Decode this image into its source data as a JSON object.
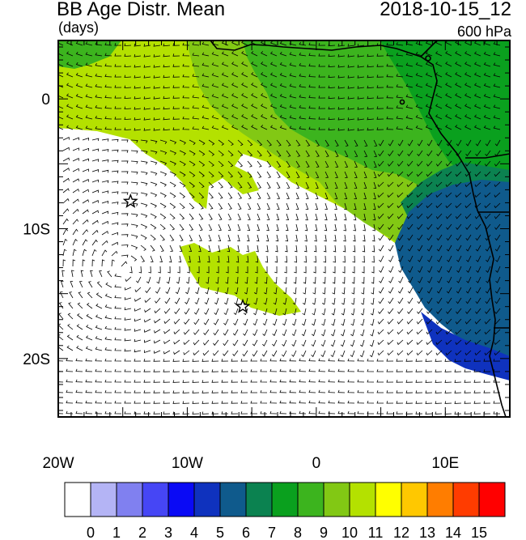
{
  "header": {
    "title": "BB Age Distr. Mean",
    "units": "(days)",
    "datetime": "2018-10-15_12",
    "level": "600 hPa"
  },
  "map": {
    "lon_range": [
      -20,
      15
    ],
    "lat_range": [
      -24.5,
      4.5
    ],
    "x_ticks": [
      {
        "value": -20,
        "label": "20W"
      },
      {
        "value": -10,
        "label": "10W"
      },
      {
        "value": 0,
        "label": "0"
      },
      {
        "value": 10,
        "label": "10E"
      }
    ],
    "y_ticks": [
      {
        "value": 0,
        "label": "0"
      },
      {
        "value": -10,
        "label": "10S"
      },
      {
        "value": -20,
        "label": "20S"
      }
    ],
    "markers": [
      {
        "name": "star-ascension-icon",
        "lon": -14.4,
        "lat": -7.9
      },
      {
        "name": "star-st-helena-icon",
        "lon": -5.7,
        "lat": -16.0
      }
    ]
  },
  "colorbar": {
    "labels": [
      "0",
      "1",
      "2",
      "3",
      "4",
      "5",
      "6",
      "7",
      "8",
      "9",
      "10",
      "11",
      "12",
      "13",
      "14",
      "15"
    ],
    "colors": [
      "#ffffff",
      "#b4b4f5",
      "#8080f0",
      "#4646f5",
      "#0a0af5",
      "#0f32be",
      "#0f5a8c",
      "#0b8250",
      "#0aa01e",
      "#3cb41e",
      "#82c814",
      "#b4e100",
      "#ffff00",
      "#ffc800",
      "#ff7d00",
      "#ff3c00",
      "#ff0000"
    ]
  }
}
